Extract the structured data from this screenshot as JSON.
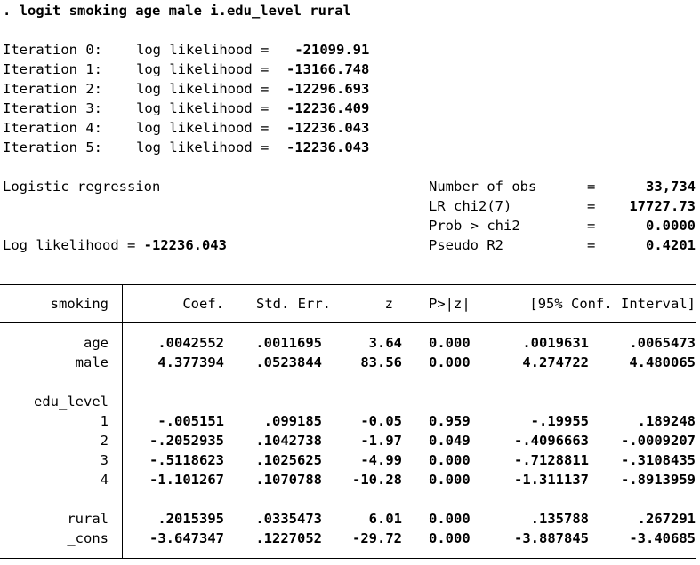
{
  "command": ". logit smoking age male i.edu_level rural",
  "iterations": [
    {
      "label": "Iteration 0:",
      "text": "log likelihood =",
      "value": " -21099.91"
    },
    {
      "label": "Iteration 1:",
      "text": "log likelihood =",
      "value": "-13166.748"
    },
    {
      "label": "Iteration 2:",
      "text": "log likelihood =",
      "value": "-12296.693"
    },
    {
      "label": "Iteration 3:",
      "text": "log likelihood =",
      "value": "-12236.409"
    },
    {
      "label": "Iteration 4:",
      "text": "log likelihood =",
      "value": "-12236.043"
    },
    {
      "label": "Iteration 5:",
      "text": "log likelihood =",
      "value": "-12236.043"
    }
  ],
  "model": {
    "title": "Logistic regression",
    "loglik_label": "Log likelihood =",
    "loglik_value": "-12236.043",
    "stats": [
      {
        "label": "Number of obs",
        "eq": "=",
        "value": "33,734"
      },
      {
        "label": "LR chi2(7)",
        "eq": "=",
        "value": "17727.73"
      },
      {
        "label": "Prob > chi2",
        "eq": "=",
        "value": "0.0000"
      },
      {
        "label": "Pseudo R2",
        "eq": "=",
        "value": "0.4201"
      }
    ]
  },
  "table": {
    "depvar": "smoking",
    "headers": [
      "Coef.",
      "Std. Err.",
      "z",
      "P>|z|",
      "[95% Conf. Interval]"
    ],
    "rows": [
      {
        "name": "age",
        "coef": ".0042552",
        "se": ".0011695",
        "z": "3.64",
        "p": "0.000",
        "lo": ".0019631",
        "hi": ".0065473"
      },
      {
        "name": "male",
        "coef": "4.377394",
        "se": ".0523844",
        "z": "83.56",
        "p": "0.000",
        "lo": "4.274722",
        "hi": "4.480065"
      },
      {
        "group": "edu_level"
      },
      {
        "name": "1",
        "coef": "-.005151",
        "se": ".099185",
        "z": "-0.05",
        "p": "0.959",
        "lo": "-.19955",
        "hi": ".189248"
      },
      {
        "name": "2",
        "coef": "-.2052935",
        "se": ".1042738",
        "z": "-1.97",
        "p": "0.049",
        "lo": "-.4096663",
        "hi": "-.0009207"
      },
      {
        "name": "3",
        "coef": "-.5118623",
        "se": ".1025625",
        "z": "-4.99",
        "p": "0.000",
        "lo": "-.7128811",
        "hi": "-.3108435"
      },
      {
        "name": "4",
        "coef": "-1.101267",
        "se": ".1070788",
        "z": "-10.28",
        "p": "0.000",
        "lo": "-1.311137",
        "hi": "-.8913959"
      },
      {
        "name": "rural",
        "coef": ".2015395",
        "se": ".0335473",
        "z": "6.01",
        "p": "0.000",
        "lo": ".135788",
        "hi": ".267291"
      },
      {
        "name": "_cons",
        "coef": "-3.647347",
        "se": ".1227052",
        "z": "-29.72",
        "p": "0.000",
        "lo": "-3.887845",
        "hi": "-3.40685"
      }
    ]
  }
}
